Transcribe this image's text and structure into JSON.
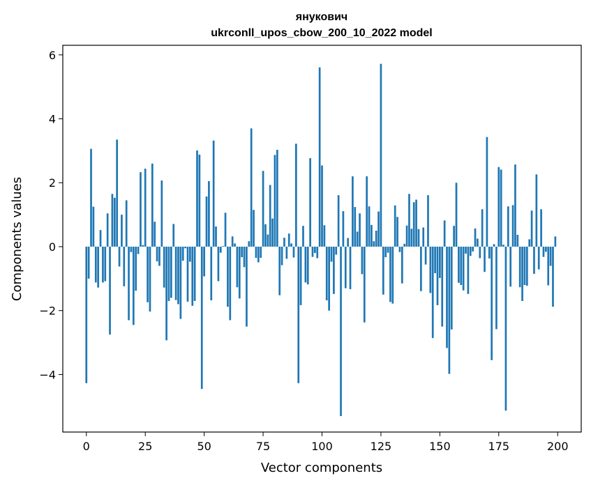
{
  "chart_data": {
    "type": "bar",
    "title": "янукович",
    "subtitle": "ukrconll_upos_cbow_200_10_2022 model",
    "xlabel": "Vector components",
    "ylabel": "Components values",
    "xlim": [
      -10,
      210
    ],
    "ylim": [
      -5.8,
      6.3
    ],
    "xticks": [
      0,
      25,
      50,
      75,
      100,
      125,
      150,
      175,
      200
    ],
    "xtick_labels": [
      "0",
      "25",
      "50",
      "75",
      "100",
      "125",
      "150",
      "175",
      "200"
    ],
    "yticks": [
      -4,
      -2,
      0,
      2,
      4,
      6
    ],
    "ytick_labels": [
      "−4",
      "−2",
      "0",
      "2",
      "4",
      "6"
    ],
    "bar_color": "#1f77b4",
    "grid": false,
    "values": [
      -4.27,
      -1.0,
      3.06,
      1.25,
      -1.12,
      -1.28,
      0.52,
      -1.12,
      -1.08,
      1.04,
      -2.75,
      1.65,
      1.53,
      3.35,
      -0.62,
      1.0,
      -1.24,
      1.45,
      -2.3,
      -0.17,
      -2.45,
      -1.38,
      -0.23,
      2.33,
      0.05,
      2.44,
      -1.74,
      -2.03,
      2.6,
      0.78,
      -0.46,
      -0.6,
      2.07,
      -1.28,
      -2.93,
      -1.7,
      -1.6,
      0.71,
      -1.67,
      -1.8,
      -2.26,
      -0.44,
      -0.05,
      -1.72,
      -0.47,
      -1.85,
      -1.7,
      3.01,
      2.88,
      -4.45,
      -0.93,
      1.57,
      2.05,
      -1.68,
      3.32,
      0.63,
      -1.08,
      -0.19,
      0.02,
      1.06,
      -1.88,
      -2.3,
      0.32,
      0.1,
      -1.27,
      -1.62,
      -0.33,
      -0.64,
      -2.5,
      0.17,
      3.7,
      1.15,
      -0.35,
      -0.49,
      -0.35,
      2.37,
      0.7,
      0.38,
      1.93,
      0.88,
      2.87,
      3.03,
      -1.52,
      -0.58,
      0.28,
      -0.38,
      0.41,
      0.1,
      -0.34,
      3.22,
      -4.27,
      -1.83,
      0.65,
      -1.12,
      -1.18,
      2.77,
      -0.32,
      -0.2,
      -0.36,
      5.61,
      2.54,
      0.67,
      -1.68,
      -2.0,
      -0.47,
      -1.48,
      -0.25,
      1.61,
      -5.3,
      1.11,
      -1.3,
      0.27,
      -1.33,
      2.2,
      1.24,
      0.47,
      1.04,
      -0.86,
      -2.37,
      2.2,
      1.26,
      0.68,
      0.17,
      0.5,
      1.1,
      5.72,
      -1.5,
      -0.33,
      -0.19,
      -1.73,
      -1.78,
      1.29,
      0.93,
      -0.17,
      -1.15,
      0.09,
      0.66,
      1.65,
      0.56,
      1.39,
      1.47,
      0.55,
      -1.39,
      0.6,
      -0.56,
      1.61,
      -1.45,
      -2.86,
      -0.83,
      -1.83,
      -0.98,
      -2.5,
      0.82,
      -3.17,
      -3.98,
      -2.59,
      0.65,
      2.0,
      -1.13,
      -1.2,
      -1.37,
      -0.22,
      -1.48,
      -0.29,
      -0.15,
      0.57,
      0.25,
      -0.36,
      1.17,
      -0.79,
      3.43,
      -0.37,
      -3.55,
      0.08,
      -2.58,
      2.49,
      2.41,
      0.06,
      -5.13,
      1.26,
      -1.25,
      1.3,
      2.57,
      0.37,
      -1.27,
      -1.7,
      -1.2,
      -1.22,
      0.23,
      1.13,
      -0.85,
      2.26,
      -0.71,
      1.17,
      -0.32,
      -0.16,
      -1.21,
      -0.6,
      -1.88,
      0.32
    ]
  }
}
